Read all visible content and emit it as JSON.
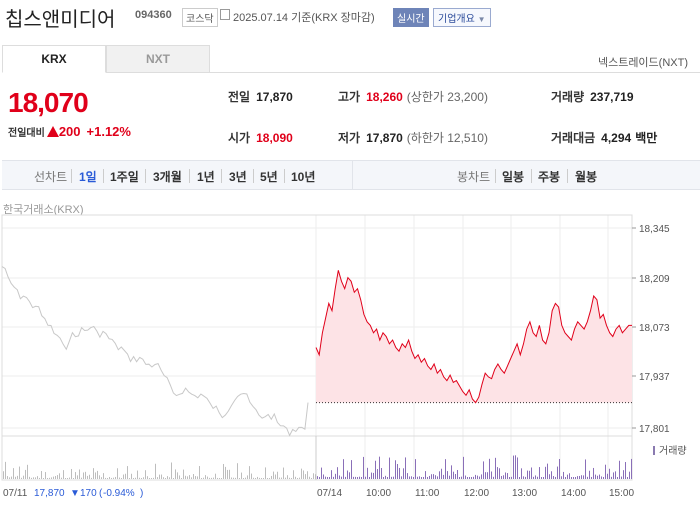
{
  "header": {
    "name": "칩스앤미디어",
    "code": "094360",
    "market": "코스닥",
    "date_text": "2025.07.14 기준(KRX 장마감)",
    "realtime": "실시간",
    "company": "기업개요"
  },
  "tabs": [
    {
      "label": "KRX"
    },
    {
      "label": "NXT"
    }
  ],
  "nexttrade": "넥스트레이드(NXT)",
  "quote": {
    "price": "18,070",
    "change_label": "전일대비",
    "change": "200",
    "change_pct": "+1.12%"
  },
  "stats": {
    "prev_close": {
      "label": "전일",
      "value": "17,870"
    },
    "high": {
      "label": "고가",
      "value": "18,260",
      "sub": "(상한가 23,200)"
    },
    "volume": {
      "label": "거래량",
      "value": "237,719"
    },
    "open": {
      "label": "시가",
      "value": "18,090"
    },
    "low": {
      "label": "저가",
      "value": "17,870",
      "sub": "(하한가 12,510)"
    },
    "amount": {
      "label": "거래대금",
      "value": "4,294",
      "unit": "백만"
    }
  },
  "toolbar": {
    "line_label": "선차트",
    "line_periods": [
      "1일",
      "1주일",
      "3개월",
      "1년",
      "3년",
      "5년",
      "10년"
    ],
    "candle_label": "봉차트",
    "candle_periods": [
      "일봉",
      "주봉",
      "월봉"
    ]
  },
  "exchange_label": "한국거래소(KRX)",
  "chart_data": {
    "type": "line",
    "y_ticks": [
      "18,345",
      "18,209",
      "18,073",
      "17,937",
      "17,801"
    ],
    "ylim": [
      17801,
      18345
    ],
    "x_ticks": [
      "07/14",
      "10:00",
      "11:00",
      "12:00",
      "13:00",
      "14:00",
      "15:00"
    ],
    "prev_close": 17870,
    "volume_label": "거래량",
    "prev_day": {
      "date": "07/11",
      "close": "17,870",
      "change": "170",
      "change_pct": "-0.94%"
    },
    "series": [
      {
        "values": [
          18020,
          18000,
          18060,
          18100,
          18140,
          18120,
          18180,
          18230,
          18200,
          18180,
          18210,
          18200,
          18170,
          18180,
          18150,
          18110,
          18090,
          18080,
          18060,
          18070,
          18040,
          18060,
          18050,
          18030,
          18040,
          18020,
          18010,
          18030,
          18020,
          18040,
          18010,
          17990,
          18000,
          17980,
          17990,
          17970,
          17960,
          17975,
          17950,
          17960,
          17940,
          17930,
          17945,
          17925,
          17930,
          17915,
          17900,
          17890,
          17905,
          17880,
          17870,
          17885,
          17920,
          17950,
          17940,
          17935,
          17960,
          17975,
          17960,
          17950,
          17970,
          17990,
          18010,
          18030,
          18000,
          18030,
          18070,
          18090,
          18060,
          18050,
          18080,
          18040,
          18030,
          18060,
          18120,
          18140,
          18130,
          18080,
          18060,
          18050,
          18040,
          18070,
          18090,
          18080,
          18070,
          18090,
          18120,
          18160,
          18150,
          18100,
          18110,
          18080,
          18060,
          18050,
          18070,
          18080,
          18060,
          18070,
          18080,
          18080
        ]
      }
    ]
  }
}
